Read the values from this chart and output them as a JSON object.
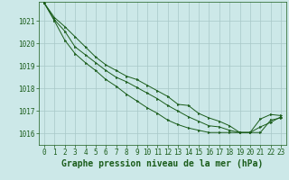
{
  "background_color": "#cce8e8",
  "line_color": "#1a5c1a",
  "grid_color": "#a8c8c8",
  "x_values": [
    0,
    1,
    2,
    3,
    4,
    5,
    6,
    7,
    8,
    9,
    10,
    11,
    12,
    13,
    14,
    15,
    16,
    17,
    18,
    19,
    20,
    21,
    22,
    23
  ],
  "series1": [
    1021.8,
    1021.15,
    1020.75,
    1020.3,
    1019.85,
    1019.4,
    1019.05,
    1018.8,
    1018.55,
    1018.4,
    1018.15,
    1017.9,
    1017.65,
    1017.3,
    1017.25,
    1016.9,
    1016.7,
    1016.55,
    1016.35,
    1016.05,
    1016.05,
    1016.65,
    1016.85,
    1016.8
  ],
  "series2": [
    1021.8,
    1021.05,
    1020.55,
    1019.85,
    1019.5,
    1019.15,
    1018.8,
    1018.5,
    1018.3,
    1018.05,
    1017.8,
    1017.55,
    1017.25,
    1017.0,
    1016.75,
    1016.55,
    1016.35,
    1016.3,
    1016.15,
    1016.05,
    1016.05,
    1016.3,
    1016.5,
    1016.75
  ],
  "series3": [
    1021.8,
    1021.0,
    1020.15,
    1019.55,
    1019.15,
    1018.8,
    1018.4,
    1018.1,
    1017.75,
    1017.45,
    1017.15,
    1016.9,
    1016.6,
    1016.4,
    1016.25,
    1016.15,
    1016.05,
    1016.05,
    1016.05,
    1016.05,
    1016.05,
    1016.05,
    1016.6,
    1016.7
  ],
  "ylim": [
    1015.5,
    1021.85
  ],
  "yticks": [
    1016,
    1017,
    1018,
    1019,
    1020,
    1021
  ],
  "xlabel": "Graphe pression niveau de la mer (hPa)",
  "tick_fontsize": 5.5,
  "xlabel_fontsize": 7.0
}
